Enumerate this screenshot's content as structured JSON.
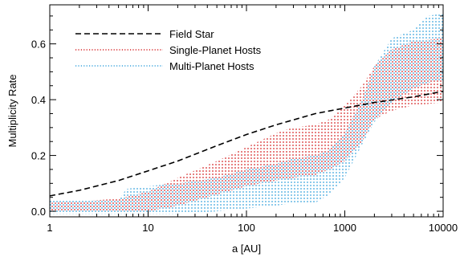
{
  "chart_data": {
    "type": "area",
    "title": "",
    "xlabel": "a [AU]",
    "ylabel": "Multiplicity Rate",
    "xscale": "log",
    "xlim": [
      1,
      10000
    ],
    "ylim": [
      -0.02,
      0.74
    ],
    "xticks": [
      1,
      10,
      100,
      1000,
      10000
    ],
    "xtick_labels": [
      "1",
      "10",
      "100",
      "1000",
      "10000"
    ],
    "yticks": [
      0.0,
      0.2,
      0.4,
      0.6
    ],
    "ytick_labels": [
      "0.0",
      "0.2",
      "0.4",
      "0.6"
    ],
    "grid": false,
    "legend_position": "top-left",
    "series": [
      {
        "name": "Field Star",
        "style": "dashed-line",
        "color": "#000000",
        "x": [
          1,
          2,
          5,
          10,
          20,
          50,
          100,
          200,
          500,
          1000,
          2000,
          5000,
          10000
        ],
        "y": [
          0.055,
          0.075,
          0.11,
          0.145,
          0.18,
          0.235,
          0.275,
          0.31,
          0.35,
          0.37,
          0.39,
          0.41,
          0.43
        ]
      },
      {
        "name": "Single-Planet Hosts",
        "style": "dotted-band",
        "color": "#d62728",
        "x": [
          1,
          2,
          5,
          10,
          20,
          50,
          100,
          200,
          300,
          500,
          700,
          1000,
          1500,
          2000,
          3000,
          5000,
          10000
        ],
        "lower": [
          0.0,
          0.0,
          0.0,
          0.0,
          0.02,
          0.06,
          0.09,
          0.11,
          0.12,
          0.13,
          0.15,
          0.18,
          0.25,
          0.33,
          0.36,
          0.38,
          0.39
        ],
        "upper": [
          0.03,
          0.035,
          0.045,
          0.07,
          0.12,
          0.18,
          0.23,
          0.28,
          0.3,
          0.31,
          0.33,
          0.38,
          0.45,
          0.52,
          0.58,
          0.61,
          0.62
        ]
      },
      {
        "name": "Multi-Planet Hosts",
        "style": "dotted-band",
        "color": "#3aa3dd",
        "x": [
          1,
          2,
          5,
          6,
          10,
          20,
          50,
          100,
          200,
          300,
          500,
          700,
          1000,
          1500,
          2000,
          3000,
          5000,
          7000,
          10000
        ],
        "lower": [
          -0.01,
          -0.01,
          -0.01,
          -0.01,
          -0.01,
          -0.01,
          0.0,
          0.01,
          0.02,
          0.03,
          0.03,
          0.06,
          0.12,
          0.24,
          0.32,
          0.39,
          0.44,
          0.46,
          0.47
        ],
        "upper": [
          0.04,
          0.04,
          0.04,
          0.08,
          0.09,
          0.1,
          0.12,
          0.15,
          0.17,
          0.19,
          0.2,
          0.22,
          0.28,
          0.4,
          0.52,
          0.62,
          0.65,
          0.7,
          0.71
        ]
      }
    ]
  },
  "legend": {
    "items": [
      "Field Star",
      "Single-Planet Hosts",
      "Multi-Planet Hosts"
    ]
  },
  "colors": {
    "single": "#d62728",
    "multi": "#3aa3dd",
    "field": "#000000"
  }
}
